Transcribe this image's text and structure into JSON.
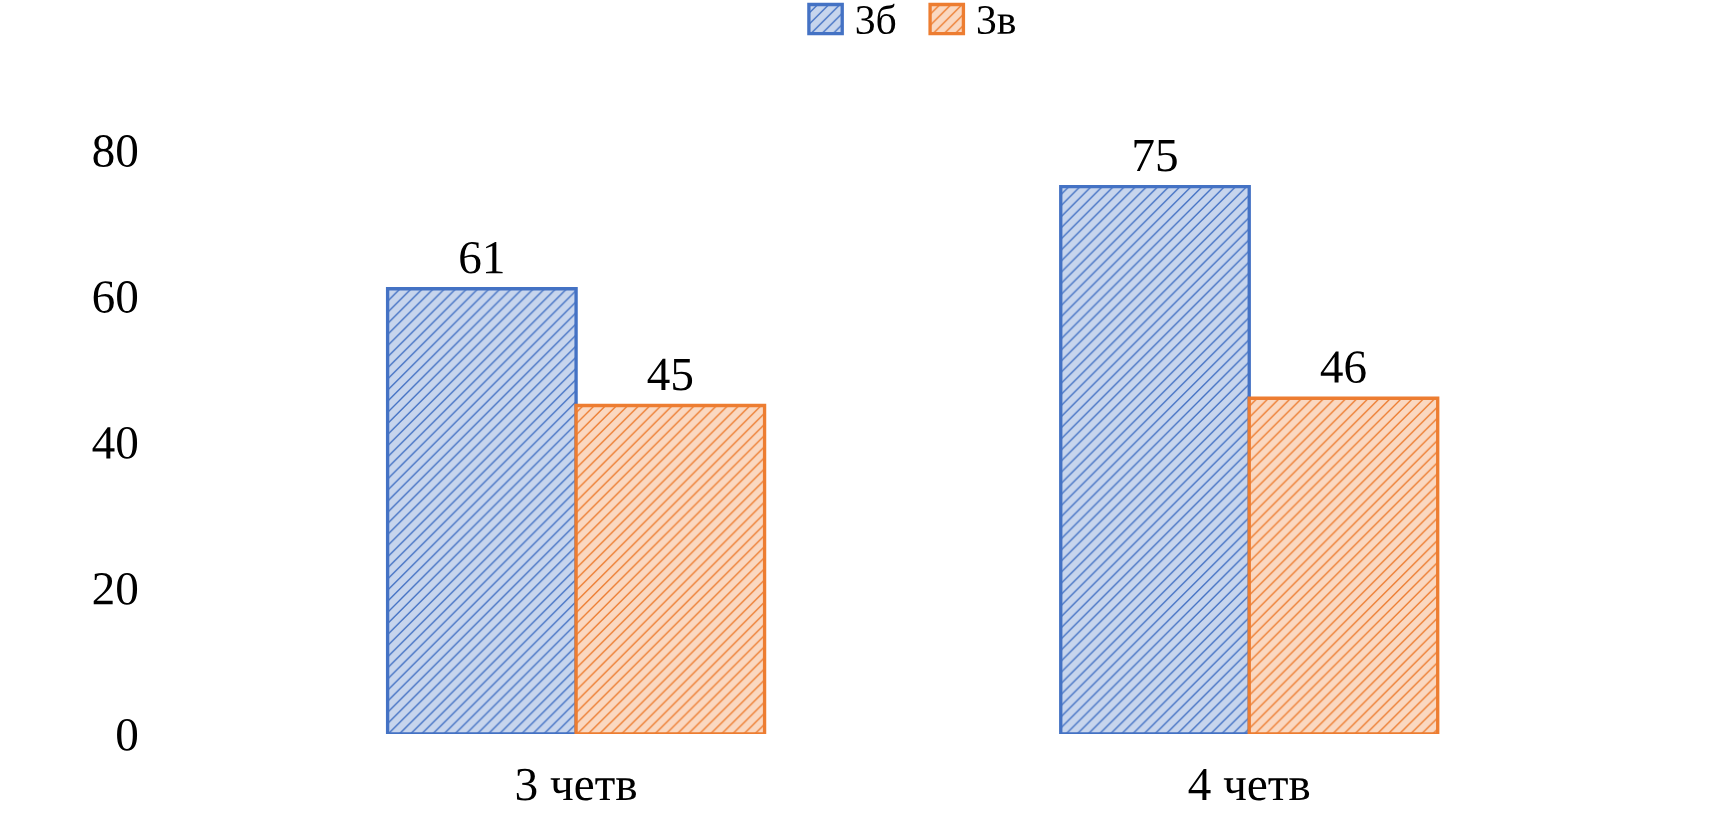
{
  "chart_data": {
    "type": "bar",
    "categories": [
      "3 четв",
      "4 четв"
    ],
    "series": [
      {
        "name": "3б",
        "color": "#4472c4",
        "values": [
          61,
          75
        ]
      },
      {
        "name": "3в",
        "color": "#ed7d31",
        "values": [
          45,
          46
        ]
      }
    ],
    "ylim": [
      0,
      80
    ],
    "yticks": [
      0,
      20,
      40,
      60,
      80
    ],
    "grid": false,
    "legend": "top",
    "data_labels": true
  }
}
